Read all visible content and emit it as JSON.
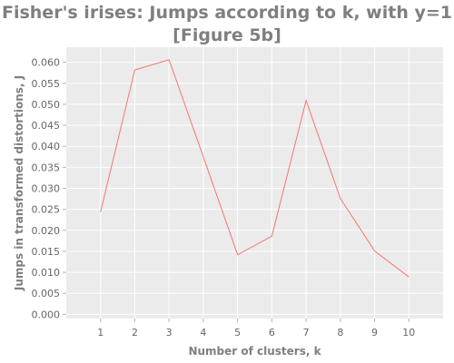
{
  "chart_data": {
    "type": "line",
    "title_lines": [
      "Fisher's irises: Jumps according to k, with y=1",
      "[Figure 5b]"
    ],
    "xlabel": "Number of clusters, k",
    "ylabel": "Jumps in transformed distortions, J",
    "x": [
      1,
      2,
      3,
      4,
      5,
      6,
      7,
      8,
      9,
      10
    ],
    "series": [
      {
        "values": [
          0.0244,
          0.0582,
          0.0606,
          0.0375,
          0.0142,
          0.0186,
          0.0509,
          0.0276,
          0.0151,
          0.0089
        ]
      }
    ],
    "xlim": [
      0,
      11
    ],
    "ylim": [
      -0.001,
      0.0636
    ],
    "xticks": [
      1,
      2,
      3,
      4,
      5,
      6,
      7,
      8,
      9,
      10
    ],
    "yticks": [
      "0.000",
      "0.005",
      "0.010",
      "0.015",
      "0.020",
      "0.025",
      "0.030",
      "0.035",
      "0.040",
      "0.045",
      "0.050",
      "0.055",
      "0.060"
    ],
    "grid": true,
    "legend": "none",
    "colors": {
      "line": "#f8766d",
      "panel": "#ebebeb",
      "grid": "#ffffff",
      "title": "#7f7f7f",
      "tick": "#666666"
    }
  }
}
